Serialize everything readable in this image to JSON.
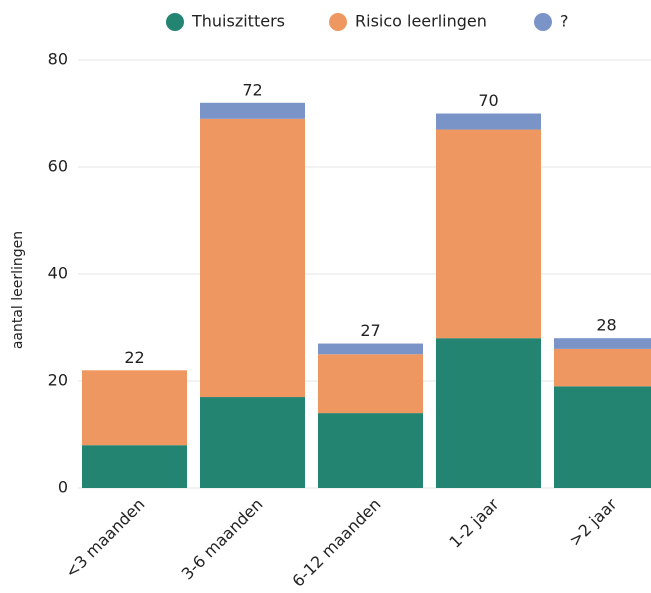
{
  "chart_data": {
    "type": "stacked_bar",
    "categories": [
      "<3 maanden",
      "3-6 maanden",
      "6-12 maanden",
      "1-2 jaar",
      ">2 jaar"
    ],
    "series": [
      {
        "name": "Thuiszitters",
        "color": "#238471",
        "values": [
          8,
          17,
          14,
          28,
          19
        ]
      },
      {
        "name": "Risico leerlingen",
        "color": "#ee9760",
        "values": [
          14,
          52,
          11,
          39,
          7
        ]
      },
      {
        "name": "?",
        "color": "#7b94c8",
        "values": [
          0,
          3,
          2,
          3,
          2
        ]
      }
    ],
    "totals": [
      22,
      72,
      27,
      70,
      28
    ],
    "ylabel": "aantal leerlingen",
    "ylim": [
      0,
      80
    ],
    "yticks": [
      0,
      20,
      40,
      60,
      80
    ],
    "grid": true,
    "legend": "top"
  }
}
